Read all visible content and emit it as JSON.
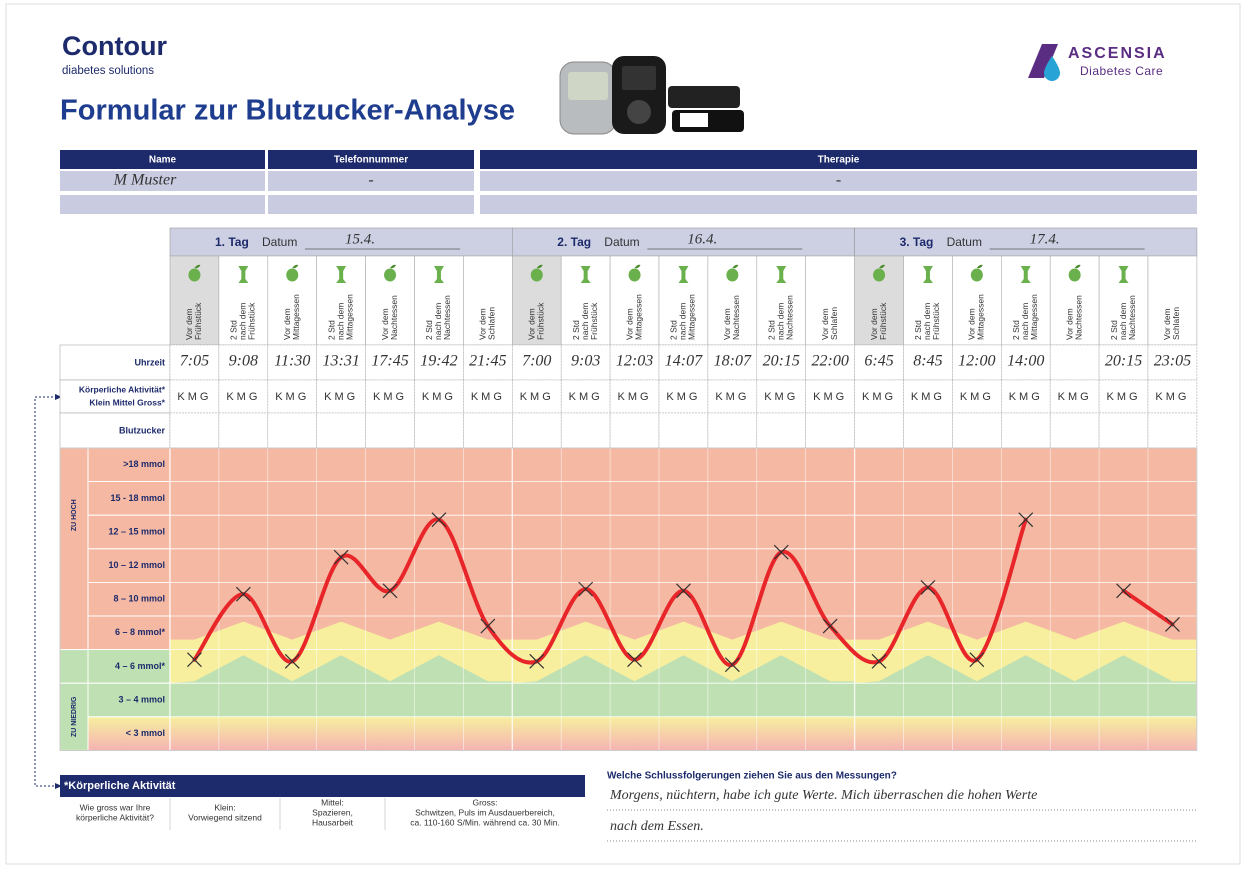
{
  "header": {
    "brand": "Contour",
    "brand_sub": "diabetes solutions",
    "title": "Formular zur Blutzucker-Analyse",
    "company": "ASCENSIA",
    "company_sub": "Diabetes Care"
  },
  "patient": {
    "headers": [
      "Name",
      "Telefonnummer",
      "Therapie"
    ],
    "values": [
      "M Muster",
      "-",
      "-"
    ]
  },
  "chart_data": {
    "type": "line",
    "days": [
      {
        "label": "1. Tag",
        "date_label": "Datum",
        "date": "15.4."
      },
      {
        "label": "2. Tag",
        "date_label": "Datum",
        "date": "16.4."
      },
      {
        "label": "3. Tag",
        "date_label": "Datum",
        "date": "17.4."
      }
    ],
    "meal_labels": [
      [
        "Vor dem",
        "Frühstück"
      ],
      [
        "2 Std",
        "nach dem",
        "Frühstück"
      ],
      [
        "Vor dem",
        "Mittagessen"
      ],
      [
        "2 Std",
        "nach dem",
        "Mittagessen"
      ],
      [
        "Vor dem",
        "Nachtessen"
      ],
      [
        "2 Std",
        "nach dem",
        "Nachtessen"
      ],
      [
        "Vor dem",
        "Schlafen"
      ]
    ],
    "row_labels": {
      "time": "Uhrzeit",
      "activity": "Körperliche Aktivität*",
      "activity_scale": "Klein Mittel Gross*",
      "glucose": "Blutzucker"
    },
    "activity_options": "KMG",
    "times": [
      "7:05",
      "9:08",
      "11:30",
      "13:31",
      "17:45",
      "19:42",
      "21:45",
      "7:00",
      "9:03",
      "12:03",
      "14:07",
      "18:07",
      "20:15",
      "22:00",
      "6:45",
      "8:45",
      "12:00",
      "14:00",
      null,
      "20:15",
      "23:05"
    ],
    "zone_groups": [
      "ZU HOCH",
      "ZU NIEDRIG"
    ],
    "zones": [
      {
        "label": ">18 mmol",
        "lo": 18
      },
      {
        "label": "15 - 18 mmol",
        "lo": 15,
        "hi": 18
      },
      {
        "label": "12 – 15 mmol",
        "lo": 12,
        "hi": 15
      },
      {
        "label": "10 – 12 mmol",
        "lo": 10,
        "hi": 12
      },
      {
        "label": "8 – 10 mmol",
        "lo": 8,
        "hi": 10
      },
      {
        "label": "6 – 8 mmol*",
        "lo": 6,
        "hi": 8
      },
      {
        "label": "4 – 6 mmol*",
        "lo": 4,
        "hi": 6
      },
      {
        "label": "3 – 4 mmol",
        "lo": 3,
        "hi": 4
      },
      {
        "label": "< 3 mmol",
        "hi": 3
      }
    ],
    "values": [
      5.4,
      9.3,
      5.3,
      11.5,
      9.5,
      14.6,
      7.4,
      5.3,
      9.6,
      5.4,
      9.5,
      5.1,
      11.8,
      7.4,
      5.3,
      9.7,
      5.4,
      14.6,
      null,
      9.5,
      7.5
    ],
    "color": "#e8262a"
  },
  "footer": {
    "title": "*Körperliche Aktivität",
    "cells": [
      [
        "Wie gross war Ihre",
        "körperliche Aktivität?"
      ],
      [
        "Klein:",
        "Vorwiegend sitzend"
      ],
      [
        "Mittel:",
        "Spazieren,",
        "Hausarbeit"
      ],
      [
        "Gross:",
        "Schwitzen, Puls im Ausdauerbereich,",
        "ca. 110-160 S/Min. während ca. 30 Min."
      ]
    ],
    "question": "Welche Schlussfolgerungen ziehen Sie aus den Messungen?",
    "answer": [
      "Morgens, nüchtern, habe ich gute Werte. Mich überraschen die hohen Werte",
      "nach dem Essen."
    ]
  }
}
